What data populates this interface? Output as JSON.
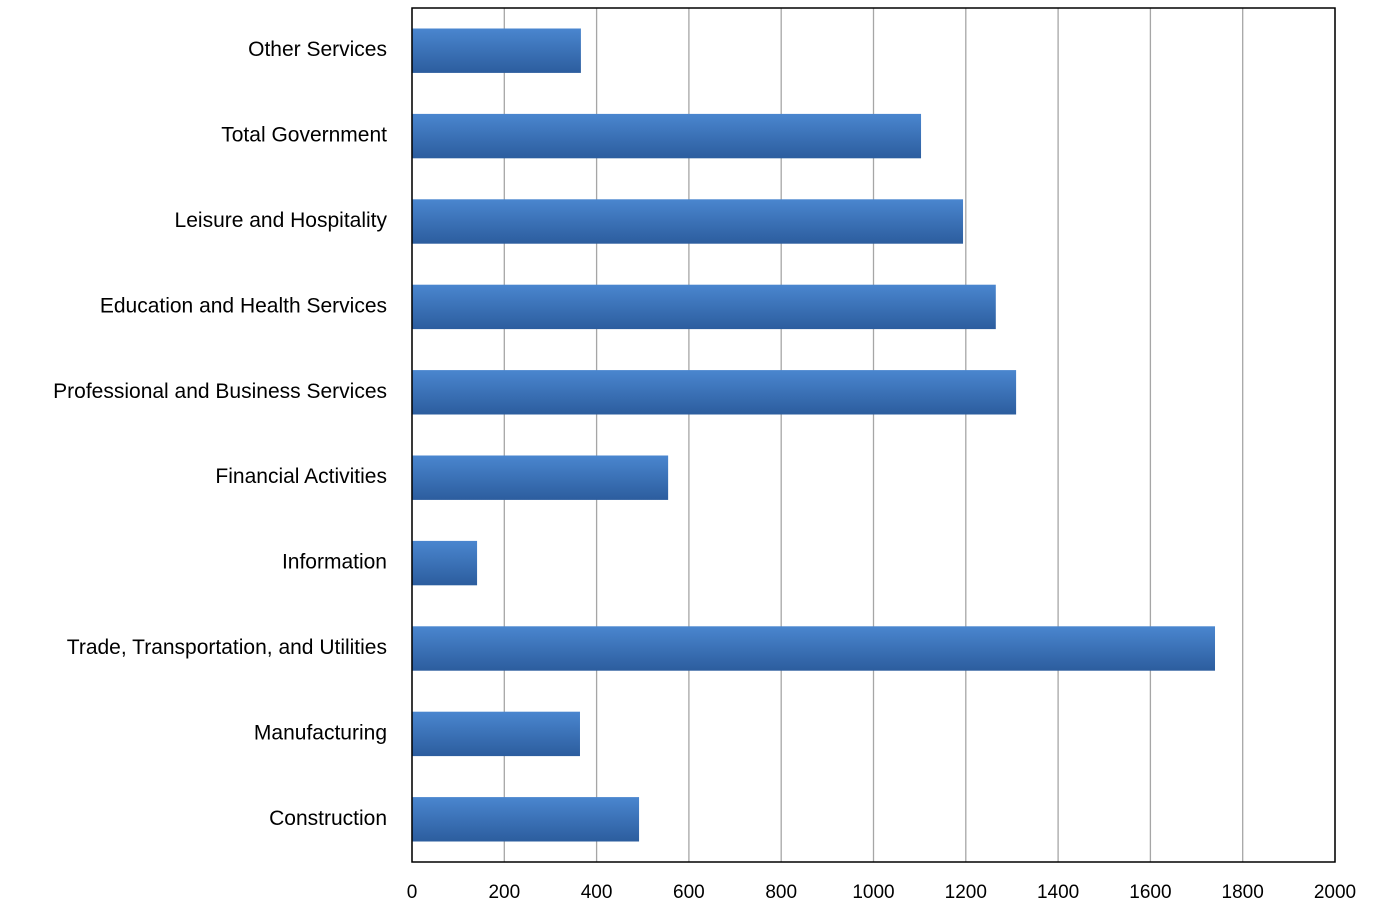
{
  "chart_data": {
    "type": "bar",
    "orientation": "horizontal",
    "categories": [
      "Construction",
      "Manufacturing",
      "Trade, Transportation, and Utilities",
      "Information",
      "Financial Activities",
      "Professional and Business Services",
      "Education and Health Services",
      "Leisure and Hospitality",
      "Total Government",
      "Other Services"
    ],
    "values": [
      492,
      364,
      1740,
      141,
      555,
      1309,
      1265,
      1194,
      1103,
      366
    ],
    "color": "#3a6fb5",
    "xlim": [
      0,
      2000
    ],
    "xticks": [
      0,
      200,
      400,
      600,
      800,
      1000,
      1200,
      1400,
      1600,
      1800,
      2000
    ],
    "grid": true
  }
}
